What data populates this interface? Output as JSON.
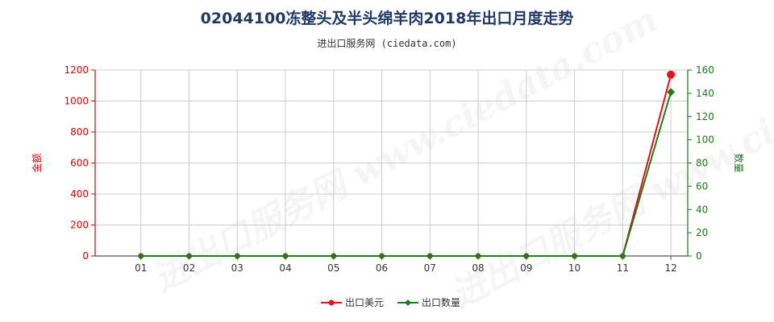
{
  "title": "02044100冻整头及半头绵羊肉2018年出口月度走势",
  "subtitle": "进出口服务网 (ciedata.com)",
  "watermark": "进出口服务网 www.ciedata.com",
  "colors": {
    "left_axis": "#e00000",
    "right_axis": "#1a7a1a",
    "series_amount": "#e81010",
    "series_quantity": "#1a7f1a",
    "grid": "#cccccc"
  },
  "chart_data": {
    "type": "line",
    "categories": [
      "01",
      "02",
      "03",
      "04",
      "05",
      "06",
      "07",
      "08",
      "09",
      "10",
      "11",
      "12"
    ],
    "y_left": {
      "label": "金额",
      "ylim": [
        0,
        1200
      ],
      "ticks": [
        0,
        200,
        400,
        600,
        800,
        1000,
        1200
      ]
    },
    "y_right": {
      "label": "数量",
      "ylim": [
        0,
        160
      ],
      "ticks": [
        0,
        20,
        40,
        60,
        80,
        100,
        120,
        140,
        160
      ]
    },
    "grid": true,
    "legend_position": "bottom",
    "series": [
      {
        "name": "出口美元",
        "axis": "left",
        "color": "#e81010",
        "marker": "circle",
        "values": [
          0,
          0,
          0,
          0,
          0,
          0,
          0,
          0,
          0,
          0,
          0,
          1170
        ]
      },
      {
        "name": "出口数量",
        "axis": "right",
        "color": "#1a7f1a",
        "marker": "diamond",
        "values": [
          0,
          0,
          0,
          0,
          0,
          0,
          0,
          0,
          0,
          0,
          0,
          141
        ]
      }
    ]
  }
}
